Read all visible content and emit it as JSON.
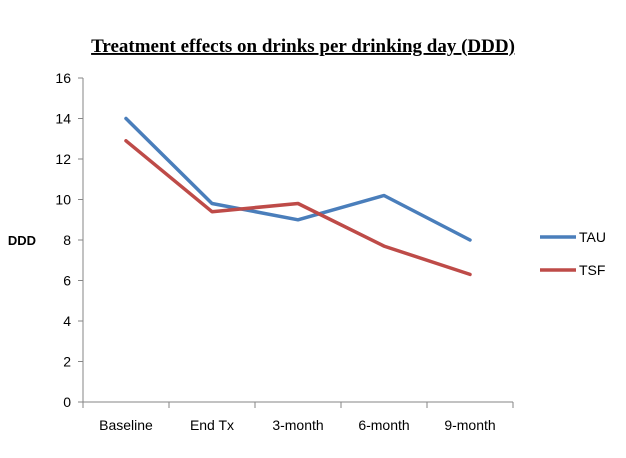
{
  "chart_data": {
    "type": "line",
    "title": "Treatment effects on drinks per drinking day (DDD)",
    "xlabel": "",
    "ylabel": "DDD",
    "categories": [
      "Baseline",
      "End Tx",
      "3-month",
      "6-month",
      "9-month"
    ],
    "ylim": [
      0,
      16
    ],
    "yticks": [
      0,
      2,
      4,
      6,
      8,
      10,
      12,
      14,
      16
    ],
    "grid": false,
    "legend_position": "right",
    "series": [
      {
        "name": "TAU",
        "color": "#4A7EBB",
        "values": [
          14.0,
          9.8,
          9.0,
          10.2,
          8.0
        ]
      },
      {
        "name": "TSF",
        "color": "#BE4B48",
        "values": [
          12.9,
          9.4,
          9.8,
          7.7,
          6.3
        ]
      }
    ]
  }
}
